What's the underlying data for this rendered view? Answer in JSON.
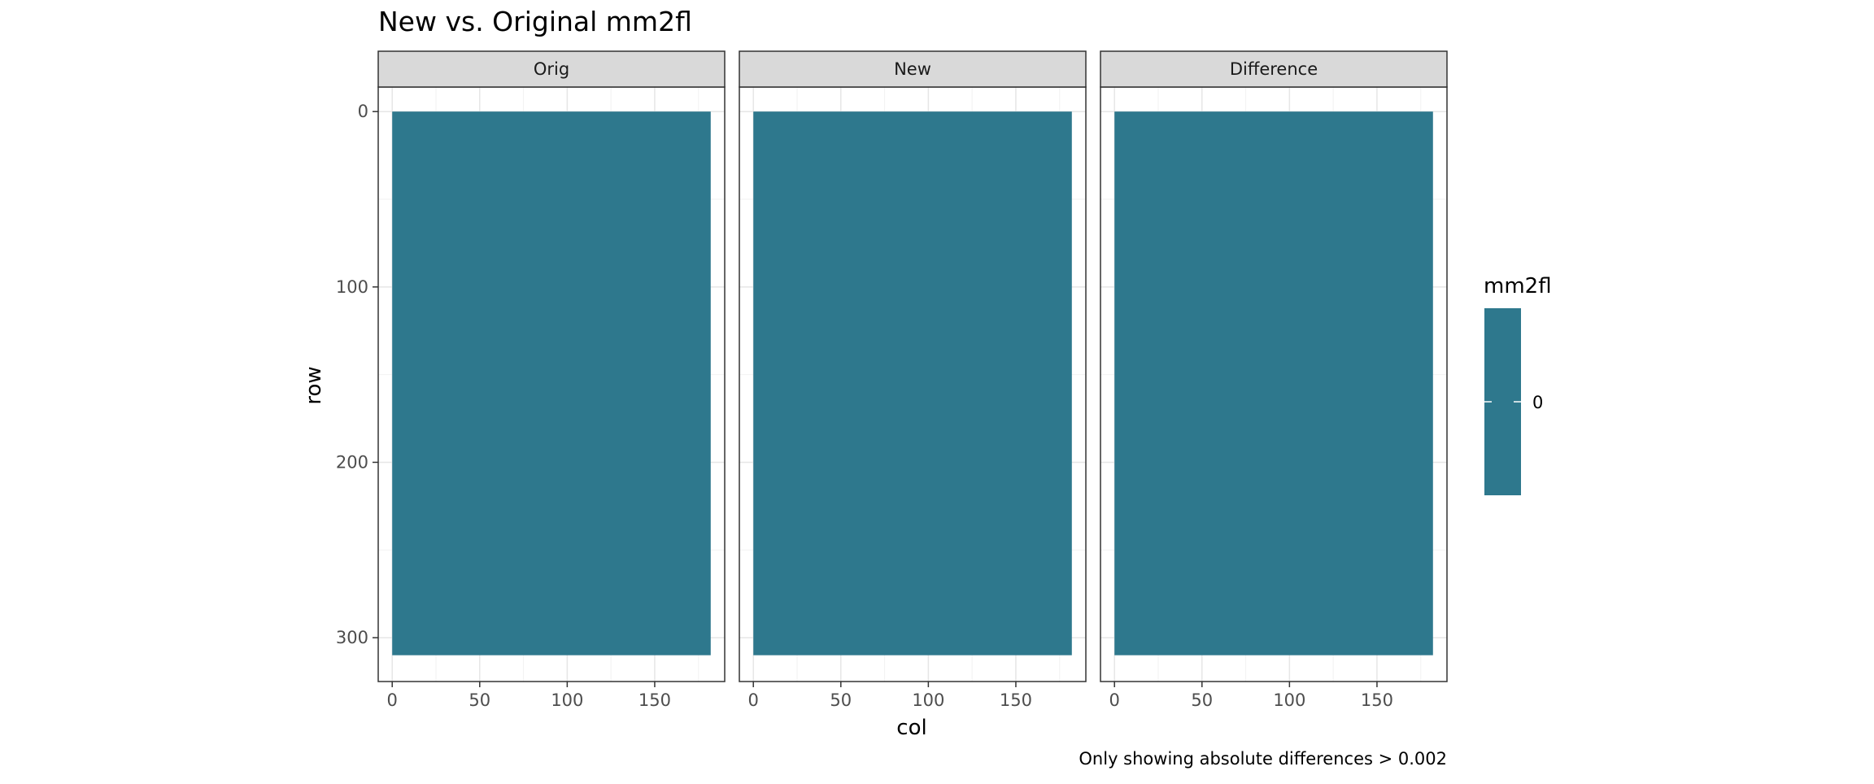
{
  "chart_data": {
    "type": "heatmap",
    "title": "New vs. Original mm2fl",
    "xlabel": "col",
    "ylabel": "row",
    "caption": "Only showing absolute differences > 0.002",
    "facets": [
      "Orig",
      "New",
      "Difference"
    ],
    "x_ticks": [
      0,
      50,
      100,
      150
    ],
    "y_ticks": [
      0,
      100,
      200,
      300
    ],
    "xlim": [
      -8,
      190
    ],
    "ylim": [
      325,
      -14
    ],
    "y_reversed": true,
    "grid": true,
    "tile_extent": {
      "col": [
        0,
        182
      ],
      "row": [
        0,
        310
      ]
    },
    "fill_color": "#2E788D",
    "legend": {
      "title": "mm2fl",
      "labels": [
        "0"
      ],
      "placement": "right"
    }
  }
}
